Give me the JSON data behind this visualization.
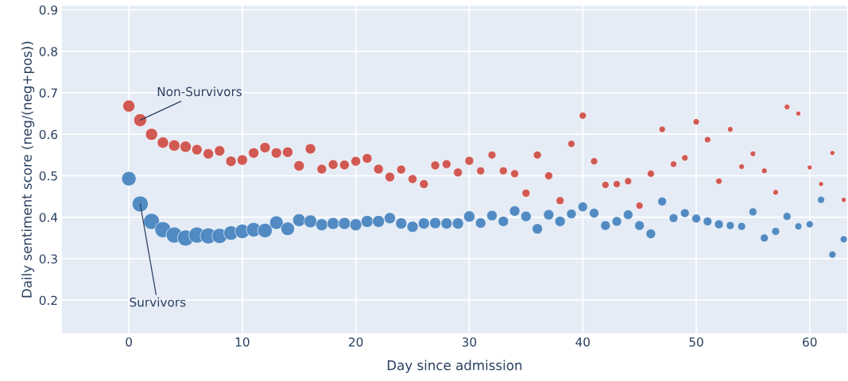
{
  "chart_data": {
    "type": "bubble",
    "xlabel": "Day since admission",
    "ylabel": "Daily sentiment score (neg/(neg+pos))",
    "xlim": [
      -5.9,
      63.3
    ],
    "ylim": [
      0.12,
      0.91
    ],
    "xticks": [
      0,
      10,
      20,
      30,
      40,
      50,
      60
    ],
    "yticks": [
      0.2,
      0.3,
      0.4,
      0.5,
      0.6,
      0.7,
      0.8,
      0.9
    ],
    "grid": true,
    "legend": false,
    "marker": "circle",
    "annotations": [
      {
        "text": "Non-Survivors",
        "x": 1,
        "y": 0.634
      },
      {
        "text": "Survivors",
        "x": 1,
        "y": 0.432
      }
    ],
    "x": [
      0,
      1,
      2,
      3,
      4,
      5,
      6,
      7,
      8,
      9,
      10,
      11,
      12,
      13,
      14,
      15,
      16,
      17,
      18,
      19,
      20,
      21,
      22,
      23,
      24,
      25,
      26,
      27,
      28,
      29,
      30,
      31,
      32,
      33,
      34,
      35,
      36,
      37,
      38,
      39,
      40,
      41,
      42,
      43,
      44,
      45,
      46,
      47,
      48,
      49,
      50,
      51,
      52,
      53,
      54,
      55,
      56,
      57,
      58,
      59,
      60,
      61,
      62,
      63
    ],
    "series": [
      {
        "color": "#d0514a",
        "values": [
          0.668,
          0.634,
          0.6,
          0.58,
          0.573,
          0.57,
          0.563,
          0.553,
          0.56,
          0.535,
          0.538,
          0.555,
          0.568,
          0.555,
          0.557,
          0.524,
          0.565,
          0.516,
          0.527,
          0.526,
          0.535,
          0.542,
          0.516,
          0.497,
          0.515,
          0.492,
          0.48,
          0.525,
          0.528,
          0.508,
          0.536,
          0.512,
          0.55,
          0.512,
          0.505,
          0.458,
          0.55,
          0.5,
          0.44,
          0.577,
          0.645,
          0.535,
          0.478,
          0.48,
          0.487,
          0.428,
          0.505,
          0.612,
          0.528,
          0.543,
          0.63,
          0.587,
          0.487,
          0.612,
          0.522,
          0.553,
          0.512,
          0.46,
          0.666,
          0.65,
          0.52,
          0.48,
          0.555,
          0.442
        ],
        "sizes": [
          0.56,
          0.64,
          0.56,
          0.49,
          0.49,
          0.49,
          0.42,
          0.42,
          0.42,
          0.42,
          0.42,
          0.42,
          0.42,
          0.42,
          0.42,
          0.42,
          0.42,
          0.36,
          0.36,
          0.36,
          0.36,
          0.36,
          0.36,
          0.36,
          0.3,
          0.3,
          0.3,
          0.3,
          0.3,
          0.3,
          0.3,
          0.25,
          0.25,
          0.25,
          0.25,
          0.25,
          0.25,
          0.25,
          0.25,
          0.2,
          0.2,
          0.2,
          0.2,
          0.2,
          0.2,
          0.2,
          0.2,
          0.16,
          0.16,
          0.16,
          0.16,
          0.16,
          0.16,
          0.12,
          0.12,
          0.12,
          0.12,
          0.12,
          0.12,
          0.09,
          0.09,
          0.09,
          0.09,
          0.09
        ]
      },
      {
        "color": "#4a86c0",
        "values": [
          0.493,
          0.432,
          0.39,
          0.37,
          0.357,
          0.35,
          0.357,
          0.355,
          0.355,
          0.362,
          0.366,
          0.37,
          0.368,
          0.387,
          0.372,
          0.393,
          0.39,
          0.382,
          0.385,
          0.385,
          0.382,
          0.39,
          0.39,
          0.398,
          0.385,
          0.377,
          0.385,
          0.386,
          0.385,
          0.385,
          0.402,
          0.386,
          0.404,
          0.39,
          0.415,
          0.402,
          0.372,
          0.406,
          0.39,
          0.408,
          0.425,
          0.41,
          0.38,
          0.39,
          0.406,
          0.38,
          0.36,
          0.438,
          0.398,
          0.41,
          0.397,
          0.39,
          0.383,
          0.38,
          0.378,
          0.413,
          0.35,
          0.366,
          0.402,
          0.378,
          0.383,
          0.442,
          0.31,
          0.347
        ],
        "sizes": [
          0.81,
          1,
          1,
          1,
          1,
          1,
          1,
          1,
          0.9,
          0.81,
          0.81,
          0.81,
          0.81,
          0.72,
          0.72,
          0.64,
          0.64,
          0.56,
          0.56,
          0.56,
          0.56,
          0.56,
          0.56,
          0.49,
          0.49,
          0.49,
          0.49,
          0.49,
          0.49,
          0.49,
          0.49,
          0.42,
          0.42,
          0.42,
          0.42,
          0.42,
          0.42,
          0.42,
          0.42,
          0.36,
          0.36,
          0.36,
          0.36,
          0.36,
          0.36,
          0.36,
          0.36,
          0.3,
          0.3,
          0.3,
          0.3,
          0.3,
          0.3,
          0.25,
          0.25,
          0.25,
          0.25,
          0.25,
          0.25,
          0.2,
          0.2,
          0.2,
          0.2,
          0.2
        ]
      }
    ]
  }
}
